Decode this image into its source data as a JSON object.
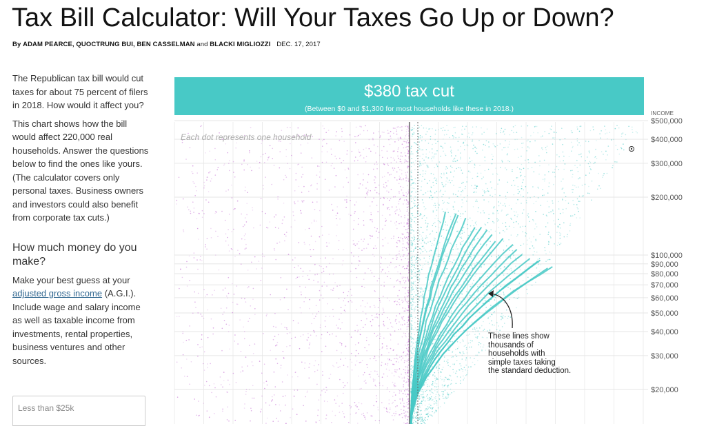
{
  "article": {
    "headline": "Tax Bill Calculator: Will Your Taxes Go Up or Down?",
    "byline_prefix": "By",
    "authors": "ADAM PEARCE, QUOCTRUNG BUI, BEN CASSELMAN",
    "byline_and": "and",
    "last_author": "BLACKI MIGLIOZZI",
    "date": "DEC. 17, 2017"
  },
  "sidebar": {
    "intro": "The Republican tax bill would cut taxes for about 75 percent of filers in 2018. How would it affect you?",
    "explainer": "This chart shows how the bill would affect 220,000 real households. Answer the questions below to find the ones like yours. (The calculator covers only personal taxes. Business owners and investors could also benefit from corporate tax cuts.)",
    "question": "How much money do you make?",
    "instruction_before": "Make your best guess at your",
    "agi_link": "adjusted gross income",
    "instruction_after": "(A.G.I.). Include wage and salary income as well as taxable income from investments, rental properties, business ventures and other sources.",
    "options": [
      "Less than $25k"
    ]
  },
  "banner": {
    "headline": "$380 tax cut",
    "subtext": "(Between $0 and $1,300 for most households like these in 2018.)"
  },
  "chart": {
    "dot_caption": "Each dot represents one household",
    "income_axis_title": "INCOME",
    "annotation": [
      "These lines show",
      "thousands of",
      "households with",
      "simple taxes taking",
      "the standard deduction."
    ],
    "colors": {
      "increase": "#c879d6",
      "cut": "#48c9c6",
      "banner": "#48c9c6",
      "link": "#326891"
    }
  },
  "chart_data": {
    "type": "scatter",
    "title": "",
    "xlabel": "",
    "ylabel": "INCOME",
    "yscale": "log",
    "ylim": [
      15000,
      600000
    ],
    "y_ticks": [
      20000,
      30000,
      40000,
      50000,
      60000,
      70000,
      80000,
      90000,
      100000,
      200000,
      300000,
      400000,
      500000
    ],
    "y_tick_labels": [
      "$20,000",
      "$30,000",
      "$40,000",
      "$50,000",
      "$60,000",
      "$70,000",
      "$80,000",
      "$90,000",
      "$100,000",
      "$200,000",
      "$300,000",
      "$400,000",
      "$500,000"
    ],
    "series": [],
    "grid": true
  }
}
